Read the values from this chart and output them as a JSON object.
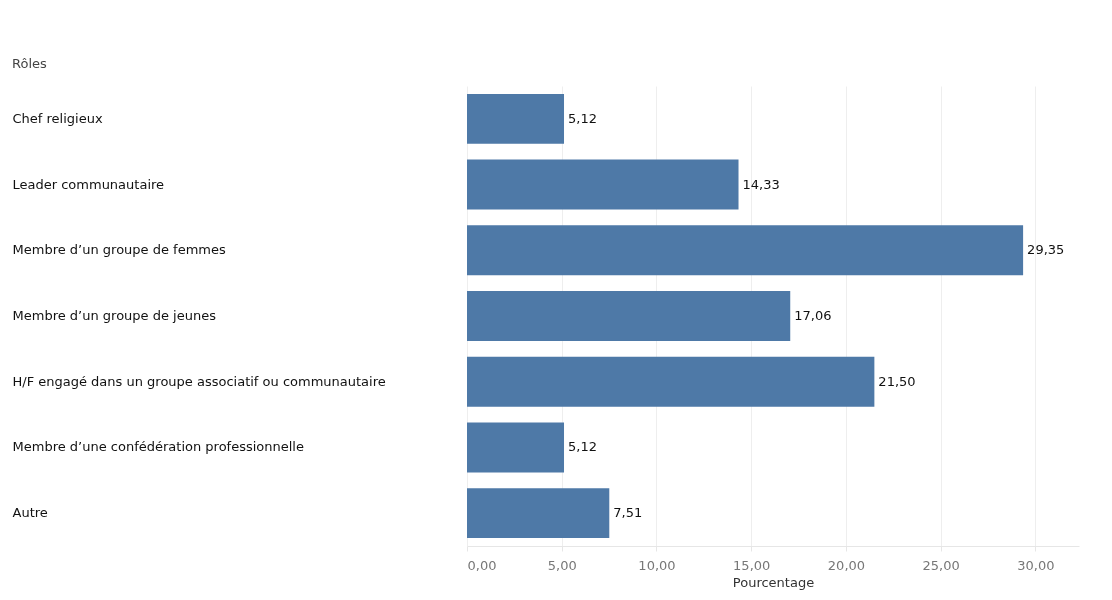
{
  "chart_data": {
    "type": "bar",
    "orientation": "horizontal",
    "ylabel": "Rôles",
    "xlabel": "Pourcentage",
    "categories": [
      "Chef religieux",
      "Leader communautaire",
      "Membre d’un groupe de femmes",
      "Membre d’un groupe de jeunes",
      "H/F engagé dans un groupe associatif ou communautaire",
      "Membre d’une confédération professionnelle",
      "Autre"
    ],
    "values": [
      5.12,
      14.33,
      29.35,
      17.06,
      21.5,
      5.12,
      7.51
    ],
    "value_labels": [
      "5,12",
      "14,33",
      "29,35",
      "17,06",
      "21,50",
      "5,12",
      "7,51"
    ],
    "color": "#4e79a7",
    "xlim": [
      0,
      32.3
    ],
    "xticks": [
      {
        "value": 0,
        "label": "0,00"
      },
      {
        "value": 5,
        "label": "5,00"
      },
      {
        "value": 10,
        "label": "10,00"
      },
      {
        "value": 15,
        "label": "15,00"
      },
      {
        "value": 20,
        "label": "20,00"
      },
      {
        "value": 25,
        "label": "25,00"
      },
      {
        "value": 30,
        "label": "30,00"
      }
    ],
    "grid": "x"
  }
}
